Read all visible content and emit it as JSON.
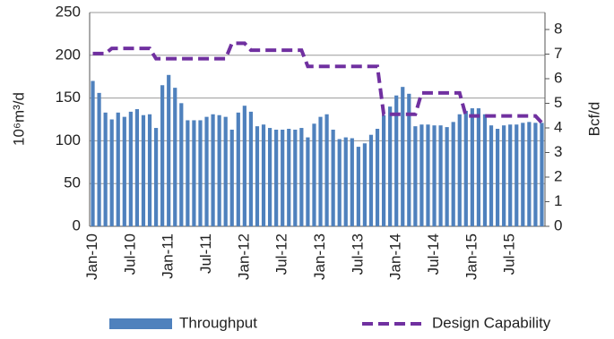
{
  "chart_data": {
    "type": "bar_line",
    "y_label": "10⁶m³/d",
    "y2_label": "Bcf/d",
    "categories": [
      "Jan-10",
      null,
      null,
      null,
      null,
      null,
      "Jul-10",
      null,
      null,
      null,
      null,
      null,
      "Jan-11",
      null,
      null,
      null,
      null,
      null,
      "Jul-11",
      null,
      null,
      null,
      null,
      null,
      "Jan-12",
      null,
      null,
      null,
      null,
      null,
      "Jul-12",
      null,
      null,
      null,
      null,
      null,
      "Jan-13",
      null,
      null,
      null,
      null,
      null,
      "Jul-13",
      null,
      null,
      null,
      null,
      null,
      "Jan-14",
      null,
      null,
      null,
      null,
      null,
      "Jul-14",
      null,
      null,
      null,
      null,
      null,
      "Jan-15",
      null,
      null,
      null,
      null,
      null,
      "Jul-15",
      null,
      null,
      null,
      null,
      null
    ],
    "series": [
      {
        "name": "Throughput",
        "type": "bar",
        "color": "#4f81bd",
        "values": [
          170,
          156,
          133,
          125,
          133,
          128,
          134,
          137,
          130,
          131,
          115,
          165,
          177,
          162,
          144,
          124,
          124,
          124,
          128,
          131,
          130,
          128,
          113,
          133,
          141,
          134,
          117,
          119,
          115,
          113,
          113,
          114,
          113,
          115,
          104,
          120,
          128,
          131,
          113,
          102,
          104,
          103,
          93,
          97,
          107,
          114,
          130,
          140,
          153,
          163,
          155,
          117,
          119,
          119,
          118,
          118,
          116,
          122,
          131,
          135,
          138,
          138,
          131,
          118,
          114,
          118,
          119,
          119,
          121,
          122,
          121,
          121
        ]
      },
      {
        "name": "Design Capability",
        "type": "line",
        "color": "#7030a0",
        "values": [
          202,
          202,
          202,
          208,
          208,
          208,
          208,
          208,
          208,
          208,
          196,
          196,
          196,
          196,
          196,
          196,
          196,
          196,
          196,
          196,
          196,
          196,
          214,
          214,
          214,
          206,
          206,
          206,
          206,
          206,
          206,
          206,
          206,
          206,
          187,
          187,
          187,
          187,
          187,
          187,
          187,
          187,
          187,
          187,
          187,
          187,
          131,
          131,
          131,
          131,
          131,
          131,
          156,
          156,
          156,
          156,
          156,
          156,
          156,
          129,
          129,
          129,
          129,
          129,
          129,
          129,
          129,
          129,
          129,
          129,
          129,
          121
        ]
      }
    ],
    "ylim": [
      0,
      250
    ],
    "yticks": [
      0,
      50,
      100,
      150,
      200,
      250
    ],
    "y2lim": [
      0,
      8.69
    ],
    "y2ticks": [
      0,
      1,
      2,
      3,
      4,
      5,
      6,
      7,
      8
    ],
    "grid": true
  }
}
